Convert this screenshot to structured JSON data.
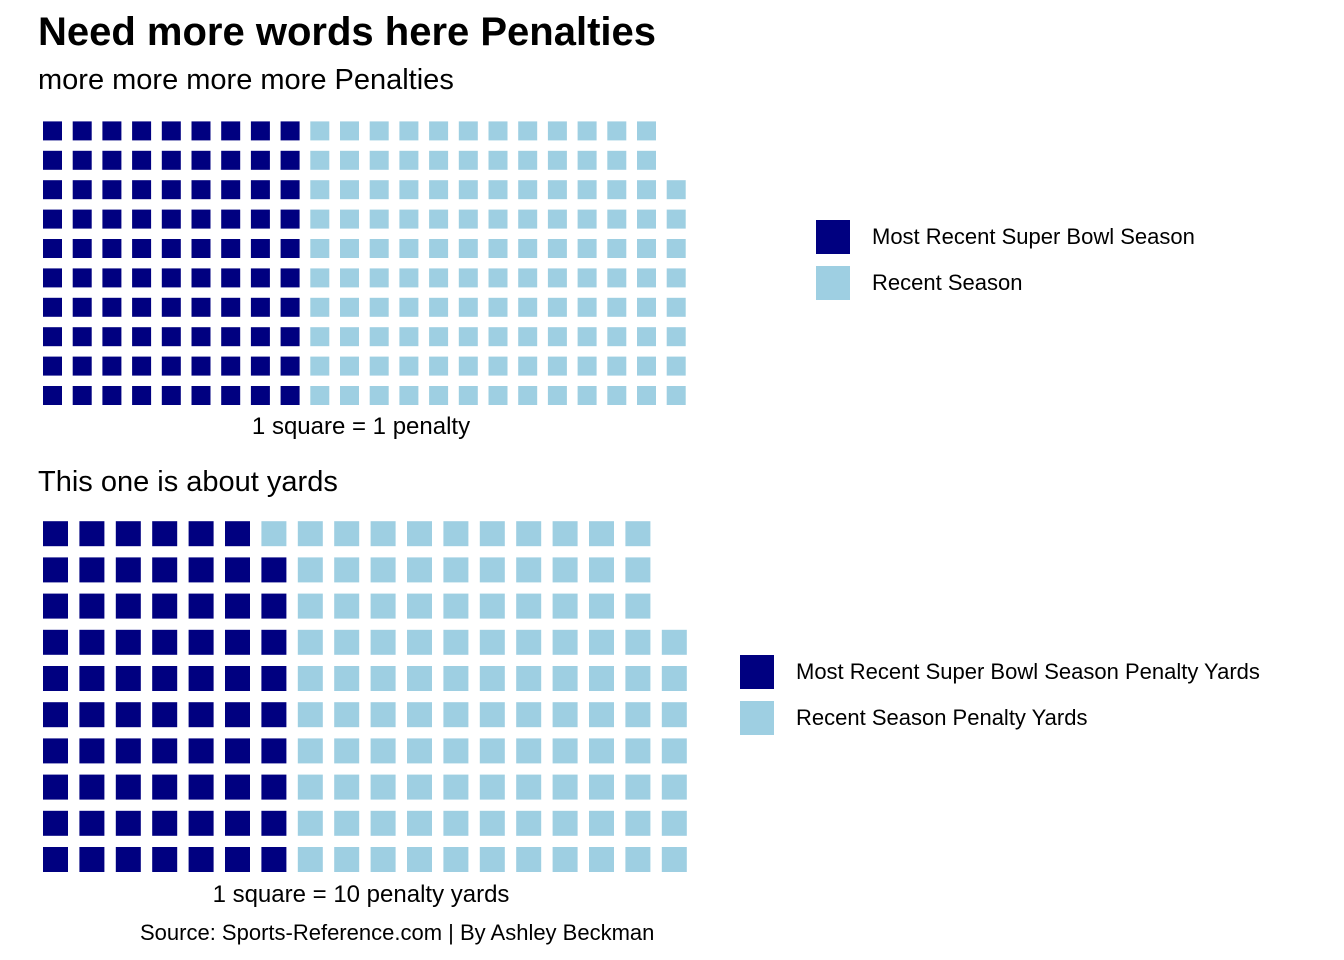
{
  "title": "Need more words here Penalties",
  "colors": {
    "super_bowl": "#000080",
    "recent": "#9ECFE2"
  },
  "chart_data": [
    {
      "type": "waffle",
      "subtitle": "more more more more Penalties",
      "caption": "1 square = 1 penalty",
      "rows": 10,
      "fill_order": "column-major, bottom-to-top",
      "categories": [
        "Most Recent Super Bowl Season",
        "Recent Season"
      ],
      "values": [
        90,
        128
      ],
      "legend_position": "right",
      "grid": false
    },
    {
      "type": "waffle",
      "subtitle": "This one is about yards",
      "caption": "1 square = 10 penalty yards",
      "rows": 10,
      "fill_order": "column-major, bottom-to-top",
      "categories": [
        "Most Recent Super Bowl Season Penalty Yards",
        "Recent Season Penalty Yards"
      ],
      "values": [
        69,
        108
      ],
      "legend_position": "right",
      "grid": false
    }
  ],
  "source": "Source: Sports-Reference.com | By Ashley Beckman"
}
